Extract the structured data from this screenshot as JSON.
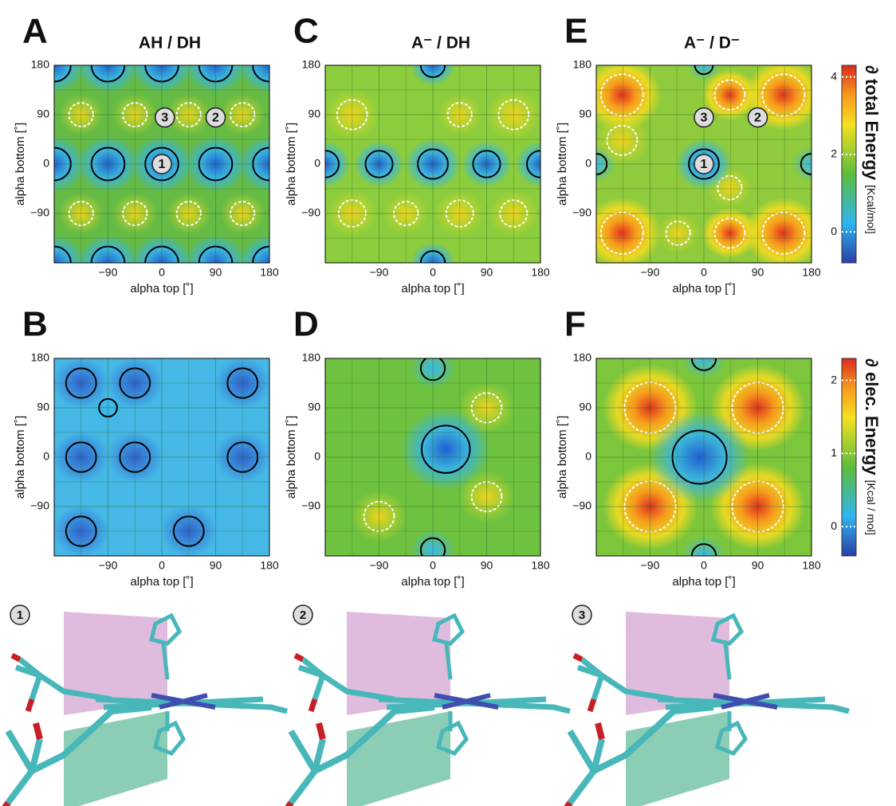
{
  "panels": [
    {
      "letter": "A",
      "title": "AH / DH",
      "x_label": "alpha top [˚]",
      "y_label": "alpha bottom [˚]",
      "xlim": [
        -180,
        180
      ],
      "ylim": [
        -180,
        180
      ],
      "xticks": [
        {
          "value": -90,
          "label": "−90"
        },
        0,
        90,
        180
      ],
      "yticks": [
        {
          "value": -90,
          "label": "−90"
        },
        0,
        90,
        180
      ],
      "markers": [
        {
          "label": "1",
          "x": 0,
          "y": 0
        },
        {
          "label": "2",
          "x": 90,
          "y": 85
        },
        {
          "label": "3",
          "x": 5,
          "y": 85
        }
      ]
    },
    {
      "letter": "B",
      "x_label": "alpha top [˚]",
      "y_label": "alpha bottom [˚]",
      "xlim": [
        -180,
        180
      ],
      "ylim": [
        -180,
        180
      ],
      "xticks": [
        {
          "value": -90,
          "label": "−90"
        },
        0,
        90,
        180
      ],
      "yticks": [
        {
          "value": -90,
          "label": "−90"
        },
        0,
        90,
        180
      ]
    },
    {
      "letter": "C",
      "title": "A⁻ / DH",
      "x_label": "alpha top [˚]",
      "y_label": "alpha bottom [˚]",
      "xlim": [
        -180,
        180
      ],
      "ylim": [
        -180,
        180
      ],
      "xticks": [
        {
          "value": -90,
          "label": "−90"
        },
        0,
        90,
        180
      ],
      "yticks": [
        {
          "value": -90,
          "label": "−90"
        },
        0,
        90,
        180
      ]
    },
    {
      "letter": "D",
      "x_label": "alpha top [˚]",
      "y_label": "alpha bottom [˚]",
      "xlim": [
        -180,
        180
      ],
      "ylim": [
        -180,
        180
      ],
      "xticks": [
        {
          "value": -90,
          "label": "−90"
        },
        0,
        90,
        180
      ],
      "yticks": [
        {
          "value": -90,
          "label": "−90"
        },
        0,
        90,
        180
      ]
    },
    {
      "letter": "E",
      "title": "A⁻ / D⁻",
      "x_label": "alpha top [˚]",
      "y_label": "alpha bottom [˚]",
      "xlim": [
        -180,
        180
      ],
      "ylim": [
        -180,
        180
      ],
      "xticks": [
        {
          "value": -90,
          "label": "−90"
        },
        0,
        90,
        180
      ],
      "yticks": [
        {
          "value": -90,
          "label": "−90"
        },
        0,
        90,
        180
      ],
      "markers": [
        {
          "label": "1",
          "x": 0,
          "y": 0
        },
        {
          "label": "2",
          "x": 90,
          "y": 85
        },
        {
          "label": "3",
          "x": 0,
          "y": 85
        }
      ]
    },
    {
      "letter": "F",
      "x_label": "alpha top [˚]",
      "y_label": "alpha bottom [˚]",
      "xlim": [
        -180,
        180
      ],
      "ylim": [
        -180,
        180
      ],
      "xticks": [
        {
          "value": -90,
          "label": "−90"
        },
        0,
        90,
        180
      ],
      "yticks": [
        {
          "value": -90,
          "label": "−90"
        },
        0,
        90,
        180
      ]
    }
  ],
  "colorbars": [
    {
      "label": "∂ total Energy",
      "unit": "[Kcal/mol]",
      "lim": [
        -0.8,
        4.3
      ],
      "ticks": [
        0,
        2,
        4
      ]
    },
    {
      "label": "∂ elec. Energy",
      "unit": "[Kcal / mol]",
      "lim": [
        -0.4,
        2.3
      ],
      "ticks": [
        0,
        1,
        2
      ]
    }
  ],
  "structures": [
    {
      "label": "1"
    },
    {
      "label": "2"
    },
    {
      "label": "3"
    }
  ]
}
